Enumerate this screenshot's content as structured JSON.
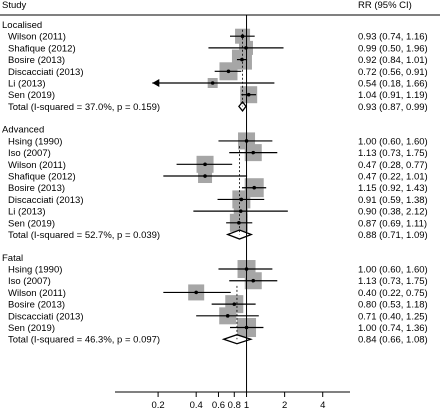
{
  "chart_data": {
    "type": "forest",
    "columns": {
      "study": "Study",
      "estimate": "RR (95% CI)"
    },
    "x_scale": "log",
    "xlim": [
      0.1,
      6
    ],
    "x_ticks": [
      "0.2",
      "0.4",
      "0.6",
      "0.8",
      "1",
      "2",
      "4"
    ],
    "x_tick_values": [
      0.2,
      0.4,
      0.6,
      0.8,
      1,
      2,
      4
    ],
    "reference_line": 1,
    "groups": [
      {
        "name": "Localised",
        "studies": [
          {
            "study": "Wilson (2011)",
            "rr": 0.93,
            "lo": 0.74,
            "hi": 1.16,
            "ci_text": "0.93 (0.74, 1.16)",
            "weight": 0.45
          },
          {
            "study": "Shafique (2012)",
            "rr": 0.99,
            "lo": 0.5,
            "hi": 1.96,
            "ci_text": "0.99 (0.50, 1.96)",
            "weight": 0.4
          },
          {
            "study": "Bosire (2013)",
            "rr": 0.92,
            "lo": 0.84,
            "hi": 1.01,
            "ci_text": "0.92 (0.84, 1.01)",
            "weight": 0.7
          },
          {
            "study": "Discacciati (2013)",
            "rr": 0.72,
            "lo": 0.56,
            "hi": 0.91,
            "ci_text": "0.72 (0.56, 0.91)",
            "weight": 0.6
          },
          {
            "study": "Li (2013)",
            "rr": 0.54,
            "lo": 0.18,
            "hi": 1.66,
            "ci_text": "0.54 (0.18, 1.66)",
            "weight": 0.2,
            "lo_arrow": true
          },
          {
            "study": "Sen (2019)",
            "rr": 1.04,
            "lo": 0.91,
            "hi": 1.19,
            "ci_text": "1.04 (0.91, 1.19)",
            "weight": 0.55
          }
        ],
        "total": {
          "label": "Total  (I-squared = 37.0%, p = 0.159)",
          "rr": 0.93,
          "lo": 0.87,
          "hi": 0.99,
          "ci_text": "0.93 (0.87, 0.99)"
        }
      },
      {
        "name": "Advanced",
        "studies": [
          {
            "study": "Hsing (1990)",
            "rr": 1.0,
            "lo": 0.6,
            "hi": 1.6,
            "ci_text": "1.00 (0.60, 1.60)",
            "weight": 0.55
          },
          {
            "study": "Iso (2007)",
            "rr": 1.13,
            "lo": 0.73,
            "hi": 1.75,
            "ci_text": "1.13 (0.73, 1.75)",
            "weight": 0.55
          },
          {
            "study": "Wilson (2011)",
            "rr": 0.47,
            "lo": 0.28,
            "hi": 0.77,
            "ci_text": "0.47 (0.28, 0.77)",
            "weight": 0.55
          },
          {
            "study": "Shafique (2012)",
            "rr": 0.47,
            "lo": 0.22,
            "hi": 1.01,
            "ci_text": "0.47 (0.22, 1.01)",
            "weight": 0.4
          },
          {
            "study": "Bosire (2013)",
            "rr": 1.15,
            "lo": 0.92,
            "hi": 1.43,
            "ci_text": "1.15 (0.92, 1.43)",
            "weight": 0.65
          },
          {
            "study": "Discacciati (2013)",
            "rr": 0.91,
            "lo": 0.59,
            "hi": 1.38,
            "ci_text": "0.91 (0.59, 1.38)",
            "weight": 0.6
          },
          {
            "study": "Li (2013)",
            "rr": 0.9,
            "lo": 0.38,
            "hi": 2.12,
            "ci_text": "0.90 (0.38, 2.12)",
            "weight": 0.4
          },
          {
            "study": "Sen (2019)",
            "rr": 0.87,
            "lo": 0.69,
            "hi": 1.11,
            "ci_text": "0.87 (0.69, 1.11)",
            "weight": 0.6
          }
        ],
        "total": {
          "label": "Total  (I-squared = 52.7%, p = 0.039)",
          "rr": 0.88,
          "lo": 0.71,
          "hi": 1.09,
          "ci_text": "0.88 (0.71, 1.09)"
        }
      },
      {
        "name": "Fatal",
        "studies": [
          {
            "study": "Hsing (1990)",
            "rr": 1.0,
            "lo": 0.6,
            "hi": 1.6,
            "ci_text": "1.00 (0.60, 1.60)",
            "weight": 0.6
          },
          {
            "study": "Iso (2007)",
            "rr": 1.13,
            "lo": 0.73,
            "hi": 1.75,
            "ci_text": "1.13 (0.73, 1.75)",
            "weight": 0.55
          },
          {
            "study": "Wilson (2011)",
            "rr": 0.4,
            "lo": 0.22,
            "hi": 0.75,
            "ci_text": "0.40 (0.22, 0.75)",
            "weight": 0.5
          },
          {
            "study": "Bosire (2013)",
            "rr": 0.8,
            "lo": 0.53,
            "hi": 1.18,
            "ci_text": "0.80 (0.53, 1.18)",
            "weight": 0.6
          },
          {
            "study": "Discacciati (2013)",
            "rr": 0.71,
            "lo": 0.4,
            "hi": 1.25,
            "ci_text": "0.71 (0.40, 1.25)",
            "weight": 0.55
          },
          {
            "study": "Sen (2019)",
            "rr": 1.0,
            "lo": 0.74,
            "hi": 1.36,
            "ci_text": "1.00 (0.74, 1.36)",
            "weight": 0.65
          }
        ],
        "total": {
          "label": "Total  (I-squared = 46.3%, p = 0.097)",
          "rr": 0.84,
          "lo": 0.66,
          "hi": 1.08,
          "ci_text": "0.84 (0.66, 1.08)"
        }
      }
    ],
    "colors": {
      "box": "#a6a6a6",
      "line": "#000000",
      "diamond": "#000000"
    }
  }
}
